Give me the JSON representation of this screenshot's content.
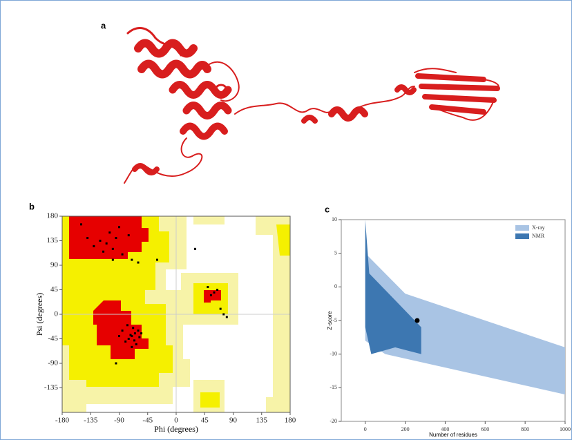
{
  "panel_a": {
    "label": "a"
  },
  "chart_data": [
    {
      "type": "scatter",
      "panel_label": "b",
      "x_label": "Phi (degrees)",
      "y_label": "Psi (degrees)",
      "xlim": [
        -180,
        180
      ],
      "ylim": [
        -180,
        180
      ],
      "xticks": [
        -180,
        -135,
        -90,
        -45,
        0,
        45,
        90,
        135,
        180
      ],
      "yticks": [
        -135,
        -90,
        -45,
        0,
        45,
        90,
        135,
        180
      ],
      "color": "#000000",
      "x": [
        -70,
        -65,
        -75,
        -60,
        -80,
        -68,
        -72,
        -58,
        -85,
        -63,
        -77,
        -66,
        -90,
        -55,
        -70,
        -110,
        -100,
        -95,
        -120,
        -85,
        -105,
        -130,
        -90,
        -75,
        -115,
        -140,
        -100,
        60,
        55,
        65,
        50,
        70,
        75,
        80,
        -70,
        -60,
        -95,
        -150,
        -30,
        30
      ],
      "y": [
        -40,
        -35,
        -45,
        -30,
        -50,
        -25,
        -38,
        -42,
        -30,
        -55,
        -20,
        -48,
        -40,
        -35,
        -60,
        130,
        120,
        140,
        135,
        110,
        150,
        125,
        160,
        145,
        115,
        140,
        100,
        40,
        35,
        45,
        50,
        10,
        0,
        -5,
        100,
        95,
        -90,
        165,
        100,
        120
      ]
    },
    {
      "type": "scatter",
      "panel_label": "c",
      "x_label": "Number of residues",
      "y_label": "Z-score",
      "xlim": [
        -120,
        1000
      ],
      "ylim": [
        -20,
        10
      ],
      "xticks": [
        0,
        200,
        400,
        600,
        800,
        1000
      ],
      "yticks": [
        -20,
        -15,
        -10,
        -5,
        0,
        5,
        10
      ],
      "legend": [
        {
          "name": "X-ray",
          "color": "#a9c4e4"
        },
        {
          "name": "NMR",
          "color": "#3d77b1"
        }
      ],
      "legend_position": "upper right",
      "query_point": {
        "x": 260,
        "y": -5,
        "color": "#000000"
      }
    }
  ]
}
